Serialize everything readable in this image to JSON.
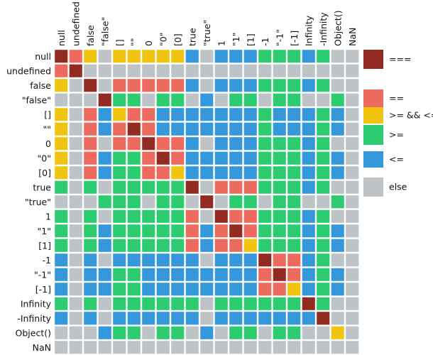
{
  "chart_data": {
    "type": "heatmap",
    "title": "",
    "labels": [
      "null",
      "undefined",
      "false",
      "\"false\"",
      "[]",
      "\"\"",
      "0",
      "\"0\"",
      "[0]",
      "true",
      "\"true\"",
      "1",
      "\"1\"",
      "[1]",
      "-1",
      "\"-1\"",
      "[-1]",
      "Infinity",
      "-Infinity",
      "Object()",
      "NaN"
    ],
    "legend": [
      {
        "key": "E",
        "label": "===",
        "color": "#922b21"
      },
      {
        "key": "Q",
        "label": "==",
        "color": "#ec6b5e"
      },
      {
        "key": "Y",
        "label": ">= && <=",
        "color": "#f1c40f"
      },
      {
        "key": "G",
        "label": ">=",
        "color": "#2ecc71"
      },
      {
        "key": "B",
        "label": "<=",
        "color": "#3498db"
      },
      {
        "key": "X",
        "label": "else",
        "color": "#bdc3c7"
      }
    ],
    "legend_placement": "right",
    "matrix": [
      "EQYXYYYYYBXBBBGGGBGXX",
      "QEXXXXXXXXXXXXXXXXXXX",
      "YXEXQQQQQBXBBBGGGBGXX",
      "XXXEGGXGGXBXGGXGGXXGX",
      "YXQBYQQBBBBBBBGBBBGBX",
      "YXQBQEQBBBBBBBGBBBGBX",
      "YXQXQQEQQBXBBBGGGBGXX",
      "YXQBGGQEQBBBBBGGGBGBX",
      "YXQBGGQQYBBBBBGGGBGBX",
      "GXGXGGGGGEXQQQGGGBGXX",
      "XXXGGGXGGXEXGGXGGXXGX",
      "GXGXGGGGGQXEQQGGGBGXX",
      "GXGBGGGGGQBQEQGGGBGBX",
      "GXGBGGGGGQBQQYGGGBGBX",
      "BXBXBBBBBBXBBBEQQBGXX",
      "BXBBGGBBBBBBBBQEQBGBX",
      "BXBBGGBBBBBBBBQQYBGBX",
      "GXGXGGGGGGXGGGGGGEGXX",
      "BXBXBBBBBBXBBBBBBBEXX",
      "XXXBGGXGGXBXGGXGGXXYX",
      "XXXXXXXXXXXXXXXXXXXXX"
    ]
  }
}
